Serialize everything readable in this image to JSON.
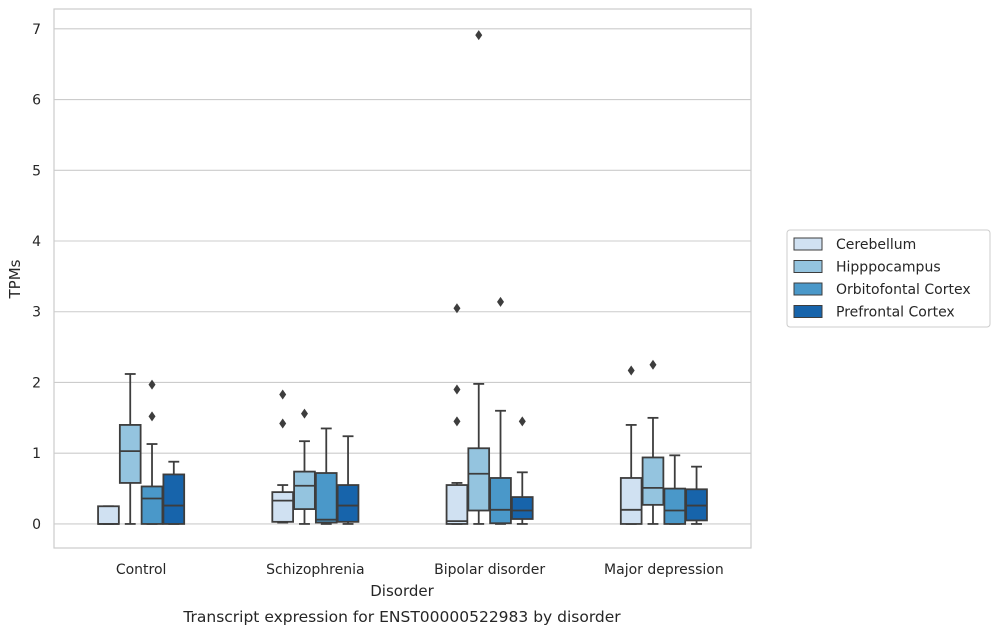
{
  "chart_data": {
    "type": "box",
    "caption": "Transcript expression for ENST00000522983 by disorder",
    "xlabel": "Disorder",
    "ylabel": "TPMs",
    "ylim": [
      -0.34,
      7.28
    ],
    "yticks": [
      0,
      1,
      2,
      3,
      4,
      5,
      6,
      7
    ],
    "grid": "horizontal",
    "legend_position": "right",
    "categories": [
      "Control",
      "Schizophrenia",
      "Bipolar disorder",
      "Major depression"
    ],
    "series": [
      {
        "name": "Cerebellum",
        "color": "#d0e1f2",
        "boxes": [
          {
            "whislo": 0,
            "q1": 0,
            "med": 0,
            "q3": 0.25,
            "whishi": 0.25,
            "fliers": []
          },
          {
            "whislo": 0.02,
            "q1": 0.03,
            "med": 0.33,
            "q3": 0.45,
            "whishi": 0.55,
            "fliers": [
              1.42,
              1.83
            ]
          },
          {
            "whislo": 0,
            "q1": 0,
            "med": 0.04,
            "q3": 0.55,
            "whishi": 0.58,
            "fliers": [
              1.45,
              1.9,
              3.05
            ]
          },
          {
            "whislo": 0,
            "q1": 0,
            "med": 0.2,
            "q3": 0.65,
            "whishi": 1.4,
            "fliers": [
              2.17
            ]
          }
        ]
      },
      {
        "name": "Hipppocampus",
        "color": "#94c4df",
        "boxes": [
          {
            "whislo": 0,
            "q1": 0.58,
            "med": 1.03,
            "q3": 1.4,
            "whishi": 2.12,
            "fliers": []
          },
          {
            "whislo": 0,
            "q1": 0.21,
            "med": 0.54,
            "q3": 0.74,
            "whishi": 1.17,
            "fliers": [
              1.56
            ]
          },
          {
            "whislo": 0,
            "q1": 0.19,
            "med": 0.71,
            "q3": 1.07,
            "whishi": 1.98,
            "fliers": [
              6.91
            ]
          },
          {
            "whislo": 0,
            "q1": 0.27,
            "med": 0.51,
            "q3": 0.94,
            "whishi": 1.5,
            "fliers": [
              2.25
            ]
          }
        ]
      },
      {
        "name": "Orbitofontal Cortex",
        "color": "#4a98c9",
        "boxes": [
          {
            "whislo": 0,
            "q1": 0,
            "med": 0.36,
            "q3": 0.53,
            "whishi": 1.13,
            "fliers": [
              1.52,
              1.97
            ]
          },
          {
            "whislo": 0,
            "q1": 0.02,
            "med": 0.06,
            "q3": 0.72,
            "whishi": 1.35,
            "fliers": []
          },
          {
            "whislo": 0,
            "q1": 0.01,
            "med": 0.2,
            "q3": 0.65,
            "whishi": 1.6,
            "fliers": [
              3.14
            ]
          },
          {
            "whislo": 0,
            "q1": 0,
            "med": 0.19,
            "q3": 0.5,
            "whishi": 0.97,
            "fliers": []
          }
        ]
      },
      {
        "name": "Prefrontal Cortex",
        "color": "#1764ab",
        "boxes": [
          {
            "whislo": 0,
            "q1": 0,
            "med": 0.26,
            "q3": 0.7,
            "whishi": 0.88,
            "fliers": []
          },
          {
            "whislo": 0,
            "q1": 0.03,
            "med": 0.26,
            "q3": 0.55,
            "whishi": 1.24,
            "fliers": []
          },
          {
            "whislo": 0,
            "q1": 0.07,
            "med": 0.19,
            "q3": 0.38,
            "whishi": 0.73,
            "fliers": [
              1.45
            ]
          },
          {
            "whislo": 0,
            "q1": 0.05,
            "med": 0.26,
            "q3": 0.49,
            "whishi": 0.81,
            "fliers": []
          }
        ]
      }
    ]
  }
}
